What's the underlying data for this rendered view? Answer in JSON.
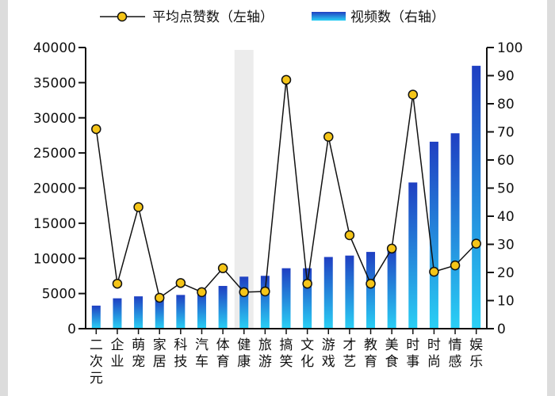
{
  "chart_data": {
    "type": "bar",
    "categories": [
      "二次元",
      "企业",
      "萌宠",
      "家居",
      "科技",
      "汽车",
      "体育",
      "健康",
      "旅游",
      "搞笑",
      "文化",
      "游戏",
      "才艺",
      "教育",
      "美食",
      "时事",
      "时尚",
      "情感",
      "娱乐"
    ],
    "highlighted_category": "健康",
    "series": [
      {
        "name": "视频数（右轴）",
        "type": "bar",
        "axis": "right",
        "values": [
          8.2,
          10.8,
          11.5,
          10.8,
          12.0,
          13.2,
          15.2,
          18.5,
          18.8,
          21.5,
          21.5,
          25.5,
          26.0,
          27.3,
          29.3,
          52.0,
          66.5,
          69.5,
          93.5
        ]
      },
      {
        "name": "平均点赞数（左轴）",
        "type": "line",
        "axis": "left",
        "values": [
          28400,
          6400,
          17300,
          4400,
          6500,
          5200,
          8600,
          5200,
          5300,
          35400,
          6400,
          27300,
          13300,
          6400,
          11400,
          33300,
          8100,
          9000,
          12100
        ]
      }
    ],
    "left_axis": {
      "min": 0,
      "max": 40000,
      "ticks": [
        0,
        5000,
        10000,
        15000,
        20000,
        25000,
        30000,
        35000,
        40000
      ]
    },
    "right_axis": {
      "min": 0,
      "max": 100,
      "ticks": [
        0,
        10,
        20,
        30,
        40,
        50,
        60,
        70,
        80,
        90,
        100
      ]
    },
    "legend_position": "top",
    "colors": {
      "bar_top": "#1f3fc2",
      "bar_bottom": "#2ad0f5",
      "marker_fill": "#f5c518",
      "line": "#111111",
      "highlight": "#ececec"
    }
  }
}
